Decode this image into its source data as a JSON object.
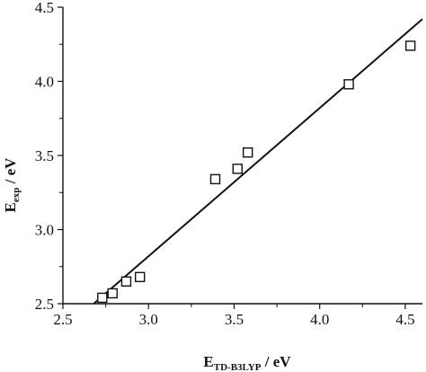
{
  "chart_data": {
    "type": "scatter",
    "title": "",
    "xlabel": {
      "main": "E",
      "sub": "TD-B3LYP",
      "unit": " / eV"
    },
    "ylabel": {
      "main": "E",
      "sub": "exp",
      "unit": " / eV"
    },
    "xlim": [
      2.5,
      4.6
    ],
    "ylim": [
      2.5,
      4.5
    ],
    "xticks": [
      "2.5",
      "3.0",
      "3.5",
      "4.0",
      "4.5"
    ],
    "yticks": [
      "2.5",
      "3.0",
      "3.5",
      "4.0",
      "4.5"
    ],
    "grid": false,
    "legend": "none",
    "series": [
      {
        "marker": "open-square",
        "points": [
          {
            "x": 2.73,
            "y": 2.54
          },
          {
            "x": 2.79,
            "y": 2.57
          },
          {
            "x": 2.87,
            "y": 2.65
          },
          {
            "x": 2.95,
            "y": 2.68
          },
          {
            "x": 3.39,
            "y": 3.34
          },
          {
            "x": 3.52,
            "y": 3.41
          },
          {
            "x": 3.58,
            "y": 3.52
          },
          {
            "x": 4.17,
            "y": 3.98
          },
          {
            "x": 4.53,
            "y": 4.24
          }
        ]
      }
    ],
    "fit_line": {
      "x_start": 2.68,
      "y_start": 2.5,
      "x_end": 4.6,
      "y_end": 4.42
    },
    "colors": {
      "axis": "#111111",
      "marker": "#111111",
      "line": "#111111",
      "background": "#ffffff"
    }
  }
}
